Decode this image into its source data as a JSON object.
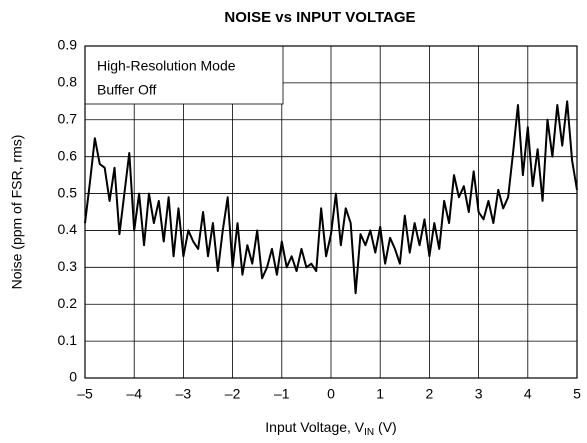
{
  "chart_data": {
    "type": "line",
    "title": "NOISE vs INPUT VOLTAGE",
    "xlabel": {
      "text": "Input Voltage, V",
      "sub": "IN",
      "suffix": " (V)"
    },
    "ylabel": "Noise (ppm of FSR, rms)",
    "annotations": [
      "High-Resolution Mode",
      "Buffer Off"
    ],
    "grid": true,
    "xlim": [
      -5,
      5
    ],
    "ylim": [
      0,
      0.9
    ],
    "xticks": [
      {
        "value": -5,
        "label": "–5"
      },
      {
        "value": -4,
        "label": "–4"
      },
      {
        "value": -3,
        "label": "–3"
      },
      {
        "value": -2,
        "label": "–2"
      },
      {
        "value": -1,
        "label": "–1"
      },
      0,
      1,
      2,
      3,
      4,
      5
    ],
    "yticks": [
      0,
      0.1,
      0.2,
      0.3,
      0.4,
      0.5,
      0.6,
      0.7,
      0.8,
      0.9
    ],
    "x": [
      -5.0,
      -4.9,
      -4.8,
      -4.7,
      -4.6,
      -4.5,
      -4.4,
      -4.3,
      -4.2,
      -4.1,
      -4.0,
      -3.9,
      -3.8,
      -3.7,
      -3.6,
      -3.5,
      -3.4,
      -3.3,
      -3.2,
      -3.1,
      -3.0,
      -2.9,
      -2.8,
      -2.7,
      -2.6,
      -2.5,
      -2.4,
      -2.3,
      -2.2,
      -2.1,
      -2.0,
      -1.9,
      -1.8,
      -1.7,
      -1.6,
      -1.5,
      -1.4,
      -1.3,
      -1.2,
      -1.1,
      -1.0,
      -0.9,
      -0.8,
      -0.7,
      -0.6,
      -0.5,
      -0.4,
      -0.3,
      -0.2,
      -0.1,
      0.0,
      0.1,
      0.2,
      0.3,
      0.4,
      0.5,
      0.6,
      0.7,
      0.8,
      0.9,
      1.0,
      1.1,
      1.2,
      1.3,
      1.4,
      1.5,
      1.6,
      1.7,
      1.8,
      1.9,
      2.0,
      2.1,
      2.2,
      2.3,
      2.4,
      2.5,
      2.6,
      2.7,
      2.8,
      2.9,
      3.0,
      3.1,
      3.2,
      3.3,
      3.4,
      3.5,
      3.6,
      3.7,
      3.8,
      3.9,
      4.0,
      4.1,
      4.2,
      4.3,
      4.4,
      4.5,
      4.6,
      4.7,
      4.8,
      4.9,
      5.0
    ],
    "series": [
      {
        "color": "#000000",
        "values": [
          0.42,
          0.53,
          0.65,
          0.58,
          0.57,
          0.48,
          0.57,
          0.39,
          0.5,
          0.61,
          0.4,
          0.5,
          0.36,
          0.5,
          0.42,
          0.48,
          0.37,
          0.49,
          0.33,
          0.46,
          0.33,
          0.4,
          0.37,
          0.35,
          0.45,
          0.33,
          0.42,
          0.29,
          0.4,
          0.49,
          0.3,
          0.42,
          0.28,
          0.36,
          0.31,
          0.4,
          0.27,
          0.3,
          0.35,
          0.28,
          0.37,
          0.3,
          0.33,
          0.29,
          0.35,
          0.3,
          0.31,
          0.29,
          0.46,
          0.33,
          0.39,
          0.5,
          0.36,
          0.46,
          0.42,
          0.23,
          0.39,
          0.36,
          0.4,
          0.34,
          0.41,
          0.31,
          0.38,
          0.35,
          0.31,
          0.44,
          0.34,
          0.42,
          0.36,
          0.43,
          0.33,
          0.42,
          0.35,
          0.48,
          0.42,
          0.55,
          0.49,
          0.52,
          0.45,
          0.56,
          0.45,
          0.43,
          0.48,
          0.42,
          0.51,
          0.46,
          0.49,
          0.61,
          0.74,
          0.55,
          0.68,
          0.52,
          0.62,
          0.48,
          0.7,
          0.6,
          0.74,
          0.63,
          0.75,
          0.59,
          0.51
        ]
      }
    ]
  }
}
